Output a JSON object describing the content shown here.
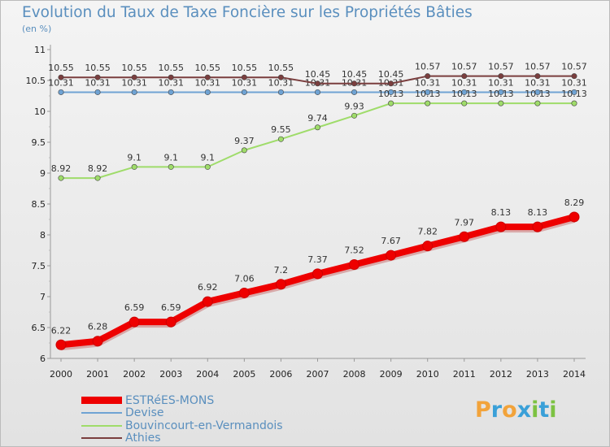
{
  "header": {
    "title": "Evolution du Taux de Taxe Foncière sur les Propriétés Bâties",
    "unit": "(en %)"
  },
  "logo": {
    "letters": [
      "P",
      "r",
      "o",
      "x",
      "i",
      "t",
      "i"
    ],
    "colors": [
      "#f2a33a",
      "#3aa0d8",
      "#f2a33a",
      "#3aa0d8",
      "#7cc242",
      "#3aa0d8",
      "#7cc242"
    ]
  },
  "chart_data": {
    "type": "line",
    "title": "Evolution du Taux de Taxe Foncière sur les Propriétés Bâties",
    "ylabel": "(en %)",
    "xlabel": "",
    "x": [
      "2000",
      "2001",
      "2002",
      "2003",
      "2004",
      "2005",
      "2006",
      "2007",
      "2008",
      "2009",
      "2010",
      "2011",
      "2012",
      "2013",
      "2014"
    ],
    "ylim": [
      6,
      11
    ],
    "yticks": [
      "6",
      "6.5",
      "7",
      "7.5",
      "8",
      "8.5",
      "9",
      "9.5",
      "10",
      "10.5",
      "11"
    ],
    "grid": false,
    "legend_position": "bottom-left",
    "series": [
      {
        "name": "ESTRéES-MONS",
        "color": "#ee0000",
        "values": [
          6.22,
          6.28,
          6.59,
          6.59,
          6.92,
          7.06,
          7.2,
          7.37,
          7.52,
          7.67,
          7.82,
          7.97,
          8.13,
          8.13,
          8.29
        ],
        "labels": [
          "6.22",
          "6.28",
          "6.59",
          "6.59",
          "6.92",
          "7.06",
          "7.2",
          "7.37",
          "7.52",
          "7.67",
          "7.82",
          "7.97",
          "8.13",
          "8.13",
          "8.29"
        ]
      },
      {
        "name": "Devise",
        "color": "#6fa3d4",
        "values": [
          10.31,
          10.31,
          10.31,
          10.31,
          10.31,
          10.31,
          10.31,
          10.31,
          10.31,
          10.31,
          10.31,
          10.31,
          10.31,
          10.31,
          10.31
        ],
        "labels": [
          "10.31",
          "10.31",
          "10.31",
          "10.31",
          "10.31",
          "10.31",
          "10.31",
          "10.31",
          "10.31",
          "10.31",
          "10.31",
          "10.31",
          "10.31",
          "10.31",
          "10.31"
        ]
      },
      {
        "name": "Bouvincourt-en-Vermandois",
        "color": "#9fdc6a",
        "values": [
          8.92,
          8.92,
          9.1,
          9.1,
          9.1,
          9.37,
          9.55,
          9.74,
          9.93,
          10.13,
          10.13,
          10.13,
          10.13,
          10.13,
          10.13
        ],
        "labels": [
          "8.92",
          "8.92",
          "9.1",
          "9.1",
          "9.1",
          "9.37",
          "9.55",
          "9.74",
          "9.93",
          "10.13",
          "10.13",
          "10.13",
          "10.13",
          "10.13",
          "10.13"
        ]
      },
      {
        "name": "Athies",
        "color": "#7a3e3e",
        "values": [
          10.55,
          10.55,
          10.55,
          10.55,
          10.55,
          10.55,
          10.55,
          10.45,
          10.45,
          10.45,
          10.57,
          10.57,
          10.57,
          10.57,
          10.57
        ],
        "labels": [
          "10.55",
          "10.55",
          "10.55",
          "10.55",
          "10.55",
          "10.55",
          "10.55",
          "10.45",
          "10.45",
          "10.45",
          "10.57",
          "10.57",
          "10.57",
          "10.57",
          "10.57"
        ]
      }
    ]
  }
}
